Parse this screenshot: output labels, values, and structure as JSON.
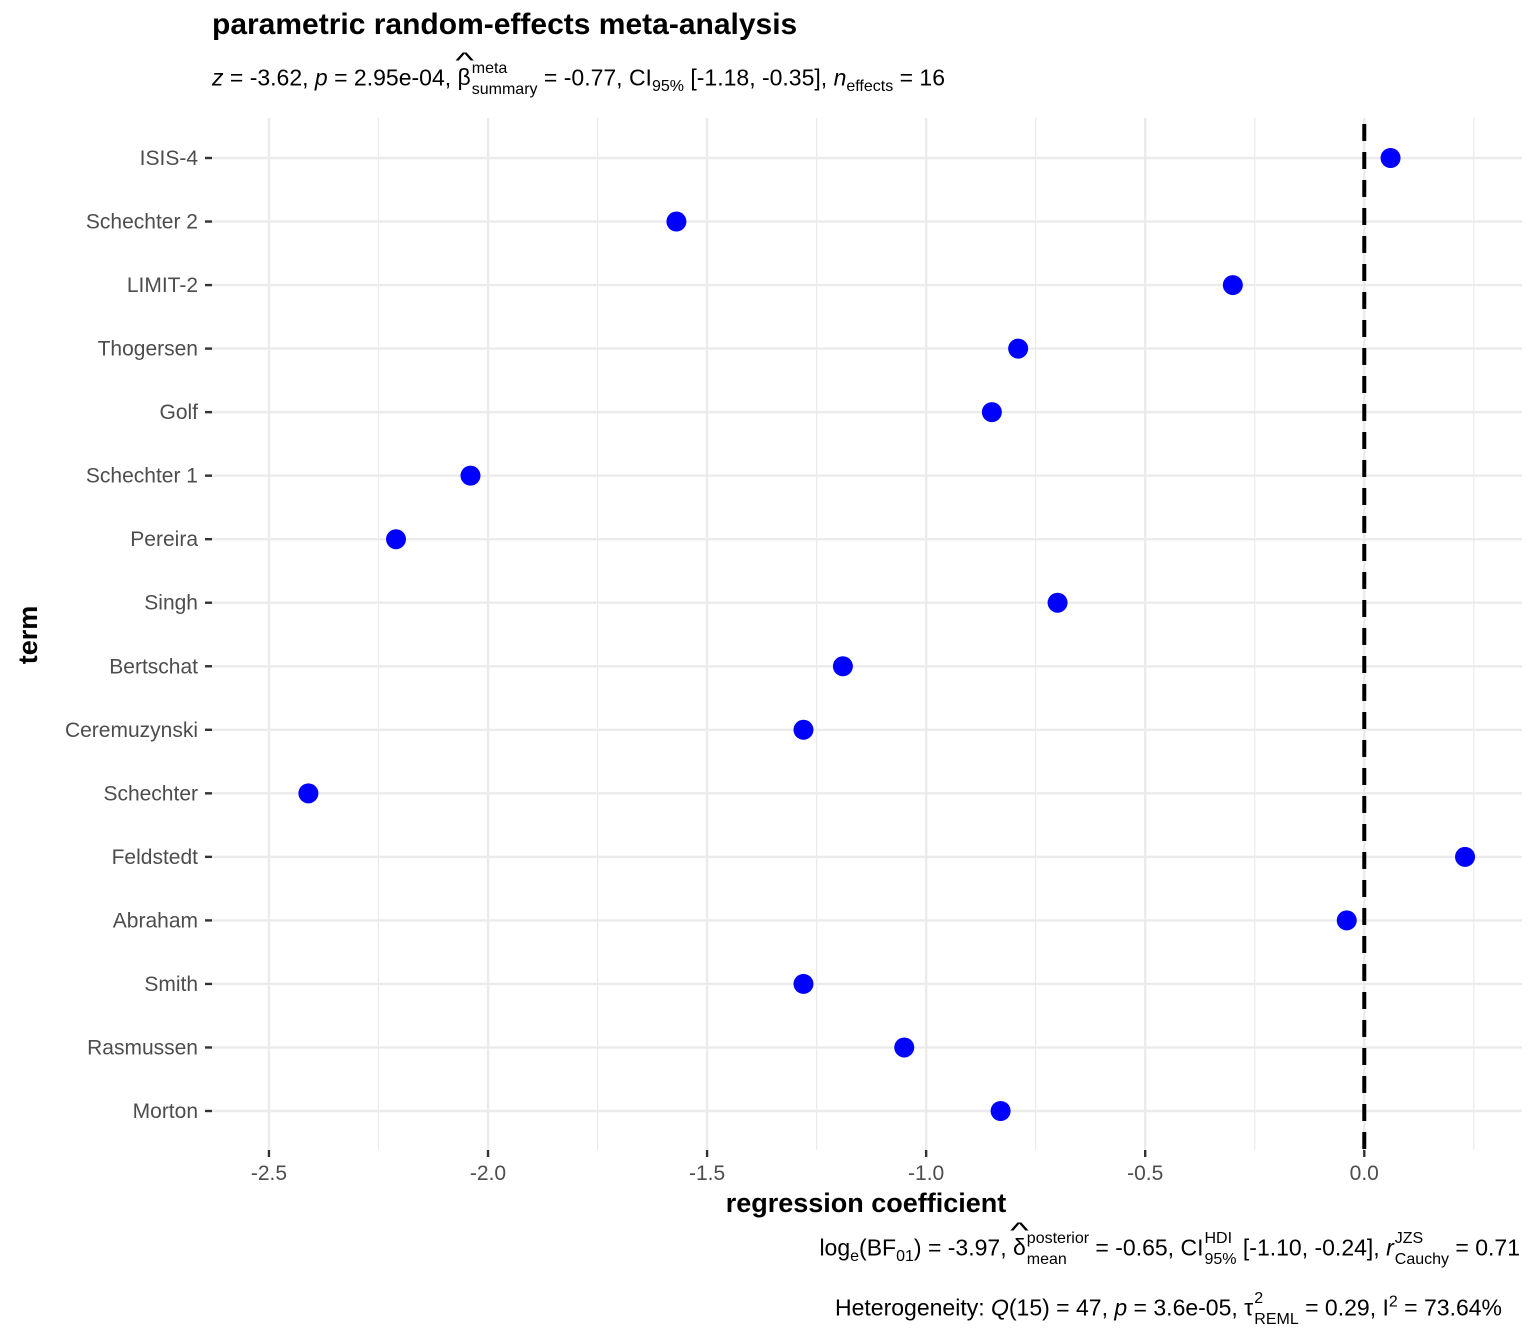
{
  "header": {
    "title": "parametric random-effects meta-analysis",
    "z_label": "z",
    "z_value": " = -3.62, ",
    "p_label": "p",
    "p_value": " = 2.95e-04, ",
    "beta_symbol": "β",
    "beta_sup": "meta",
    "beta_sub": "summary",
    "beta_value": " = -0.77, CI",
    "ci_sub": "95%",
    "ci_value": " [-1.18, -0.35], ",
    "n_label": "n",
    "n_sub": "effects",
    "n_value": " = 16"
  },
  "footer": {
    "log_prefix": "log",
    "log_sub": "e",
    "bf_prefix": "(BF",
    "bf_sub": "01",
    "bf_value": ") = -3.97, ",
    "delta_symbol": "δ",
    "delta_sup": "posterior",
    "delta_sub": "mean",
    "delta_value": " = -0.65, CI",
    "hdi_sup": "HDI",
    "hdi_sub": "95%",
    "hdi_value": " [-1.10, -0.24], ",
    "r_label": "r",
    "r_sup": "JZS",
    "r_sub": "Cauchy",
    "r_value": " = 0.71",
    "het_prefix": "Heterogeneity: ",
    "q_label": "Q",
    "q_value": "(15) = 47, ",
    "hp_label": "p",
    "hp_value": " = 3.6e-05, τ",
    "tau_sup": "2",
    "tau_sub": "REML",
    "tau_value": " = 0.29, I",
    "i_sup": "2",
    "i_value": " = 73.64%"
  },
  "chart_data": {
    "type": "scatter",
    "xlabel": "regression coefficient",
    "ylabel": "term",
    "xlim": [
      -2.63,
      0.36
    ],
    "x_ticks": [
      -2.5,
      -2.0,
      -1.5,
      -1.0,
      -0.5,
      0.0
    ],
    "x_tick_labels": [
      "-2.5",
      "-2.0",
      "-1.5",
      "-1.0",
      "-0.5",
      "0.0"
    ],
    "reference_line": 0.0,
    "grid": true,
    "point_color": "#0000ff",
    "terms": [
      "ISIS-4",
      "Schechter 2",
      "LIMIT-2",
      "Thogersen",
      "Golf",
      "Schechter 1",
      "Pereira",
      "Singh",
      "Bertschat",
      "Ceremuzynski",
      "Schechter",
      "Feldstedt",
      "Abraham",
      "Smith",
      "Rasmussen",
      "Morton"
    ],
    "values": [
      0.06,
      -1.57,
      -0.3,
      -0.79,
      -0.85,
      -2.04,
      -2.21,
      -0.7,
      -1.19,
      -1.28,
      -2.41,
      0.23,
      -0.04,
      -1.28,
      -1.05,
      -0.83
    ]
  }
}
